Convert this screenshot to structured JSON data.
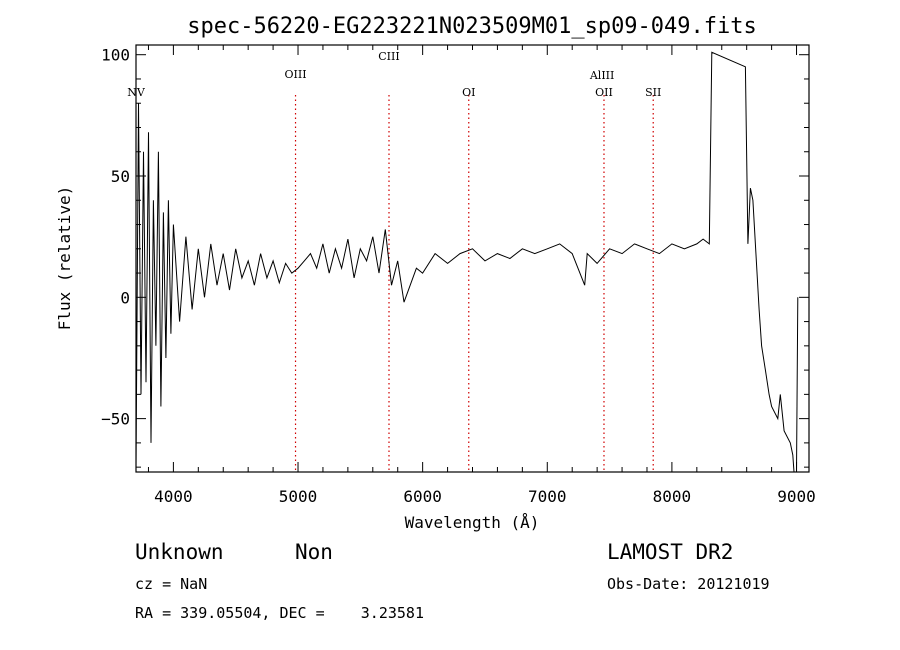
{
  "chart_data": {
    "type": "line",
    "title": "spec-56220-EG223221N023509M01_sp09-049.fits",
    "xlabel": "Wavelength (Å)",
    "ylabel": "Flux (relative)",
    "xlim": [
      3700,
      9100
    ],
    "ylim": [
      -72,
      104
    ],
    "x_ticks": [
      4000,
      5000,
      6000,
      7000,
      8000,
      9000
    ],
    "y_ticks": [
      -50,
      0,
      50,
      100
    ],
    "grid": false,
    "line_color": "#000000",
    "marker_color": "#d00000",
    "spectral_lines": [
      {
        "label": "NV",
        "wavelength": 3700
      },
      {
        "label": "OIII",
        "wavelength": 4980
      },
      {
        "label": "CIII",
        "wavelength": 5730
      },
      {
        "label": "OI",
        "wavelength": 6370
      },
      {
        "label": "AlIII",
        "wavelength": 7440
      },
      {
        "label": "OII",
        "wavelength": 7455
      },
      {
        "label": "SII",
        "wavelength": 7850
      }
    ],
    "series": [
      {
        "x": [
          3700,
          3720,
          3740,
          3760,
          3780,
          3800,
          3820,
          3840,
          3860,
          3880,
          3900,
          3920,
          3940,
          3960,
          3980,
          4000,
          4050,
          4100,
          4150,
          4200,
          4250,
          4300,
          4350,
          4400,
          4450,
          4500,
          4550,
          4600,
          4650,
          4700,
          4750,
          4800,
          4850,
          4900,
          4950,
          5000,
          5050,
          5100,
          5150,
          5200,
          5250,
          5300,
          5350,
          5400,
          5450,
          5500,
          5550,
          5600,
          5650,
          5700,
          5750,
          5800,
          5850,
          5900,
          5950,
          6000,
          6100,
          6200,
          6300,
          6400,
          6500,
          6600,
          6700,
          6800,
          6900,
          7000,
          7100,
          7200,
          7300,
          7320,
          7400,
          7500,
          7600,
          7700,
          7800,
          7900,
          8000,
          8100,
          8200,
          8250,
          8300,
          8320,
          8590,
          8610,
          8630,
          8650,
          8700,
          8720,
          8750,
          8780,
          8800,
          8850,
          8870,
          8900,
          8950,
          8970,
          8980,
          9000,
          9010
        ],
        "y": [
          -70,
          80,
          -40,
          60,
          -35,
          68,
          -60,
          40,
          -20,
          60,
          -45,
          35,
          -25,
          40,
          -15,
          30,
          -10,
          25,
          -5,
          20,
          0,
          22,
          5,
          18,
          3,
          20,
          8,
          15,
          5,
          18,
          8,
          15,
          6,
          14,
          10,
          12,
          15,
          18,
          12,
          22,
          10,
          20,
          12,
          24,
          8,
          20,
          15,
          25,
          10,
          28,
          5,
          15,
          -2,
          5,
          12,
          10,
          18,
          14,
          18,
          20,
          15,
          18,
          16,
          20,
          18,
          20,
          22,
          18,
          5,
          18,
          14,
          20,
          18,
          22,
          20,
          18,
          22,
          20,
          22,
          24,
          22,
          101,
          95,
          22,
          45,
          40,
          -5,
          -20,
          -30,
          -40,
          -45,
          -50,
          -40,
          -55,
          -60,
          -65,
          -72,
          -72,
          0
        ]
      }
    ]
  },
  "footer": {
    "class_label": "Unknown",
    "subclass_label": "Non",
    "survey_label": "LAMOST DR2",
    "cz_text": "cz = NaN",
    "obs_date_text": "Obs-Date: 20121019",
    "coords_text": "RA = 339.05504, DEC =    3.23581"
  }
}
